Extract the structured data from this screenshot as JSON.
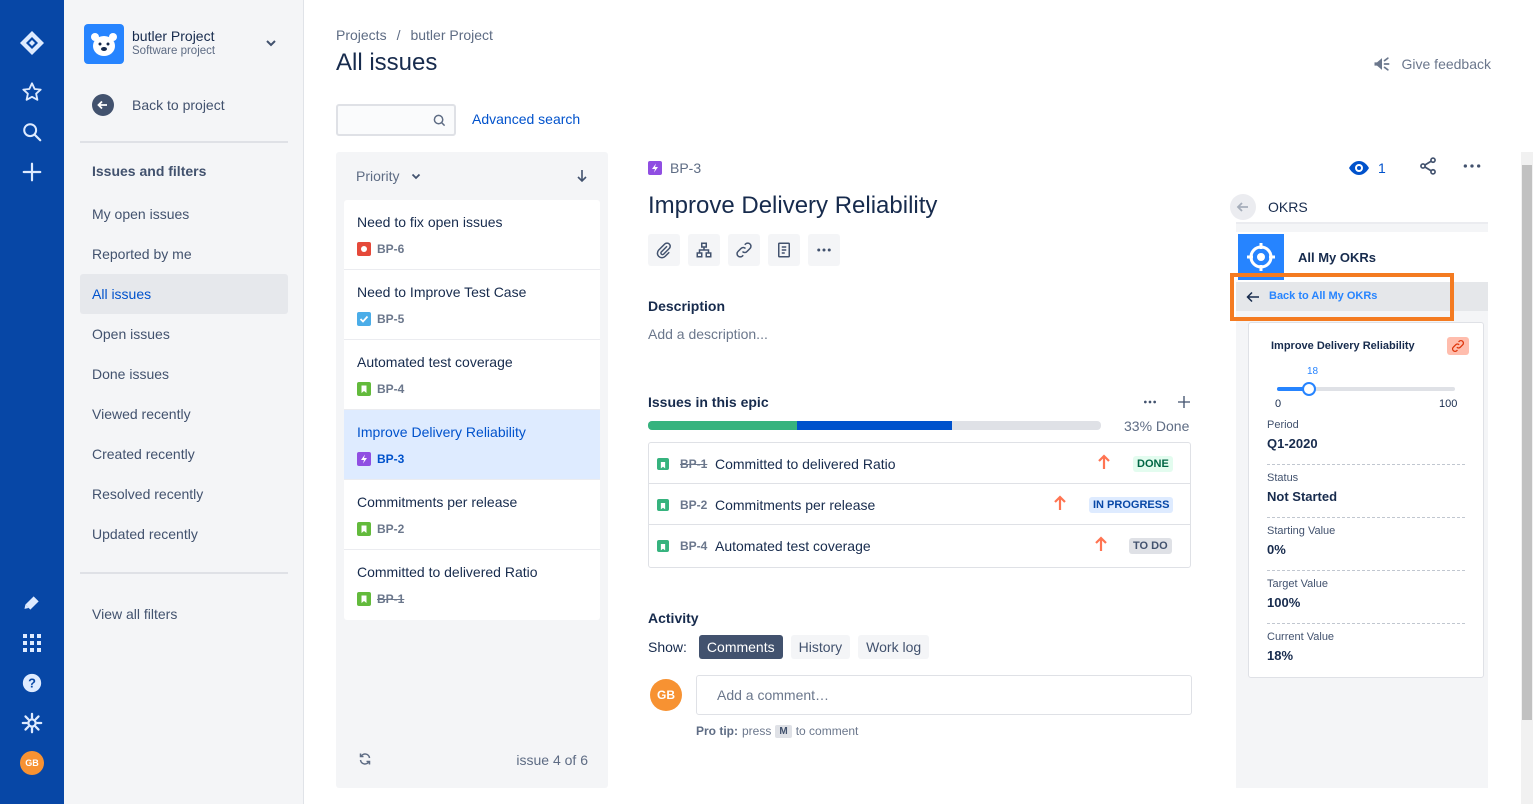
{
  "sidebar": {
    "project_name": "butler Project",
    "project_type": "Software project",
    "back_label": "Back to project",
    "section_title": "Issues and filters",
    "items": [
      {
        "label": "My open issues"
      },
      {
        "label": "Reported by me"
      },
      {
        "label": "All issues"
      },
      {
        "label": "Open issues"
      },
      {
        "label": "Done issues"
      },
      {
        "label": "Viewed recently"
      },
      {
        "label": "Created recently"
      },
      {
        "label": "Resolved recently"
      },
      {
        "label": "Updated recently"
      }
    ],
    "view_all": "View all filters",
    "user_initials": "GB"
  },
  "header": {
    "breadcrumb": [
      "Projects",
      "/",
      "butler Project"
    ],
    "title": "All issues",
    "feedback": "Give feedback",
    "advanced_search": "Advanced search"
  },
  "list": {
    "sort_label": "Priority",
    "issues": [
      {
        "title": "Need to fix open issues",
        "key": "BP-6",
        "type": "bug",
        "color": "#e5493a"
      },
      {
        "title": "Need to Improve Test Case",
        "key": "BP-5",
        "type": "task",
        "color": "#4bade8"
      },
      {
        "title": "Automated test coverage",
        "key": "BP-4",
        "type": "story",
        "color": "#63ba3c"
      },
      {
        "title": "Improve Delivery Reliability",
        "key": "BP-3",
        "type": "epic",
        "color": "#904ee2"
      },
      {
        "title": "Commitments per release",
        "key": "BP-2",
        "type": "story",
        "color": "#63ba3c"
      },
      {
        "title": "Committed to delivered Ratio",
        "key": "BP-1",
        "type": "story",
        "color": "#63ba3c"
      }
    ],
    "count": "issue 4 of 6"
  },
  "detail": {
    "key": "BP-3",
    "title": "Improve Delivery Reliability",
    "watchers": "1",
    "description_label": "Description",
    "description_placeholder": "Add a description...",
    "epic_label": "Issues in this epic",
    "progress_done": 0.33,
    "progress_inprogress": 0.34,
    "percent_done": "33% Done",
    "children": [
      {
        "key": "BP-1",
        "title": "Committed to delivered Ratio",
        "status": "DONE"
      },
      {
        "key": "BP-2",
        "title": "Commitments per release",
        "status": "IN PROGRESS"
      },
      {
        "key": "BP-4",
        "title": "Automated test coverage",
        "status": "TO DO"
      }
    ],
    "activity_label": "Activity",
    "show_label": "Show:",
    "show_options": [
      "Comments",
      "History",
      "Work log"
    ],
    "comment_placeholder": "Add a comment…",
    "avatar": "GB",
    "protip_label": "Pro tip:",
    "protip_press": "press",
    "protip_key": "M",
    "protip_rest": "to comment"
  },
  "okr": {
    "panel_title": "OKRS",
    "app_name": "All My OKRs",
    "back_label": "Back to All My OKRs",
    "card_title": "Improve Delivery Reliability",
    "slider_value": "18",
    "slider_fraction": 0.18,
    "slider_min": "0",
    "slider_max": "100",
    "fields": [
      {
        "label": "Period",
        "value": "Q1-2020"
      },
      {
        "label": "Status",
        "value": "Not Started"
      },
      {
        "label": "Starting Value",
        "value": "0%"
      },
      {
        "label": "Target Value",
        "value": "100%"
      },
      {
        "label": "Current Value",
        "value": "18%"
      }
    ]
  }
}
